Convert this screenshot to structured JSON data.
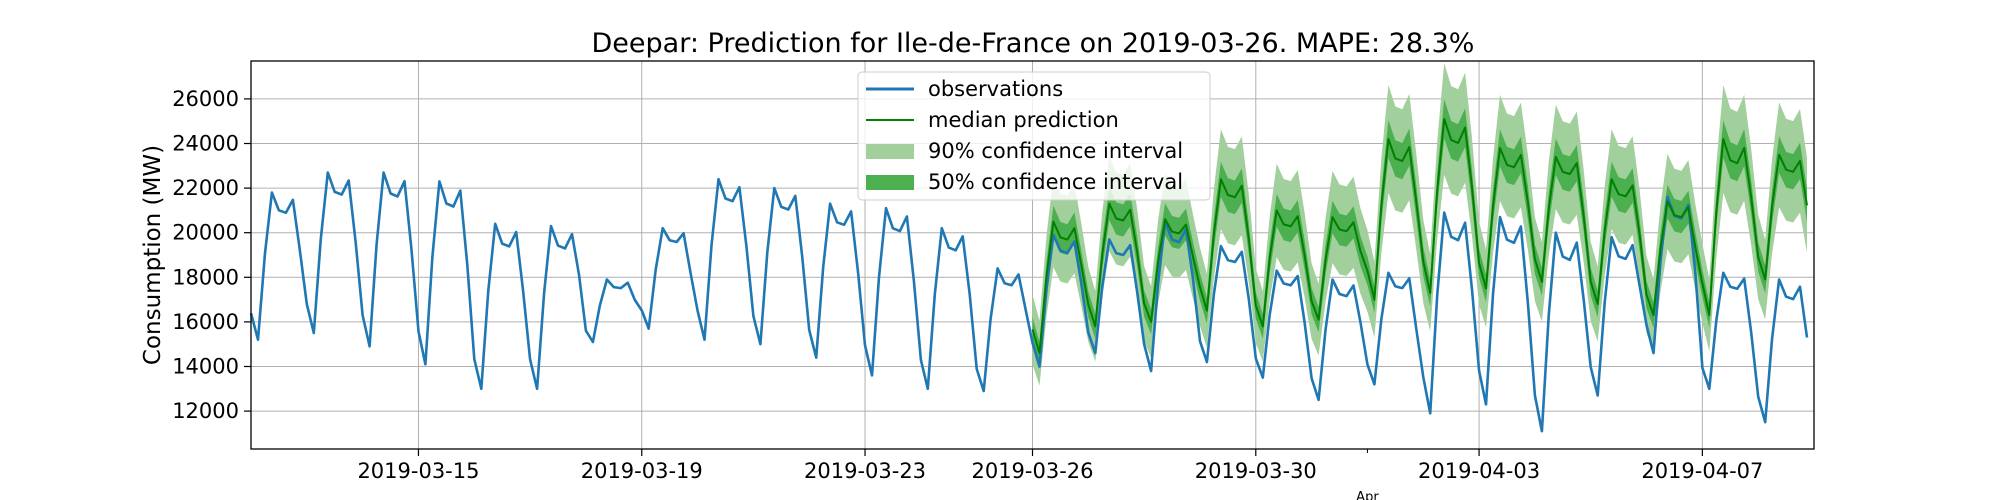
{
  "chart_data": {
    "type": "line",
    "title": "Deepar: Prediction for Ile-de-France on 2019-03-26. MAPE: 28.3%",
    "xlabel": "",
    "ylabel": "Consumption (MW)",
    "xlim": [
      "2019-03-12",
      "2019-04-09"
    ],
    "ylim": [
      10300,
      27700
    ],
    "grid": true,
    "legend_position": "top-center",
    "x_ticks": [
      {
        "date": "2019-03-15",
        "label": "2019-03-15"
      },
      {
        "date": "2019-03-19",
        "label": "2019-03-19"
      },
      {
        "date": "2019-03-23",
        "label": "2019-03-23"
      },
      {
        "date": "2019-03-26",
        "label": "2019-03-26"
      },
      {
        "date": "2019-03-30",
        "label": "2019-03-30"
      },
      {
        "date": "2019-04-03",
        "label": "2019-04-03"
      },
      {
        "date": "2019-04-07",
        "label": "2019-04-07"
      }
    ],
    "x_minor_ticks": [
      {
        "date": "2019-04-01",
        "label": "Apr"
      }
    ],
    "y_ticks": [
      12000,
      14000,
      16000,
      18000,
      20000,
      22000,
      24000,
      26000
    ],
    "series": [
      {
        "name": "observations",
        "kind": "line",
        "color": "#1f77b4",
        "x_start": "2019-03-12",
        "step_hours": 3,
        "daily_peaks": [
          21800,
          22700,
          22700,
          22300,
          20400,
          20300,
          17900,
          20200,
          22400,
          22000,
          21300,
          21100,
          20200,
          18400,
          19900,
          19700,
          20500,
          19400,
          18300,
          17900,
          18200,
          20900,
          20700,
          20000,
          19800,
          21600,
          18200,
          17900
        ],
        "daily_troughs": [
          15200,
          15500,
          14900,
          14100,
          13000,
          13000,
          15100,
          15700,
          15200,
          15000,
          14400,
          13600,
          13000,
          12900,
          14000,
          14600,
          13800,
          14200,
          13500,
          12500,
          13200,
          11900,
          12300,
          11100,
          12700,
          14600,
          13000,
          11500
        ]
      },
      {
        "name": "median prediction",
        "kind": "line",
        "color": "#008000",
        "x_start": "2019-03-26",
        "step_hours": 3,
        "daily_peaks": [
          20500,
          21300,
          20600,
          22400,
          21000,
          20700,
          24200,
          25100,
          23800,
          23400,
          22400,
          21400,
          24200,
          23500
        ],
        "daily_troughs": [
          14600,
          15800,
          16000,
          16500,
          15800,
          16100,
          17000,
          17300,
          17500,
          17800,
          16800,
          16300,
          16300,
          17900
        ]
      },
      {
        "name": "90% confidence interval",
        "kind": "band",
        "color": "#a1d09c",
        "spread": 0.1
      },
      {
        "name": "50% confidence interval",
        "kind": "band",
        "color": "#4caf50",
        "spread": 0.035
      }
    ]
  }
}
